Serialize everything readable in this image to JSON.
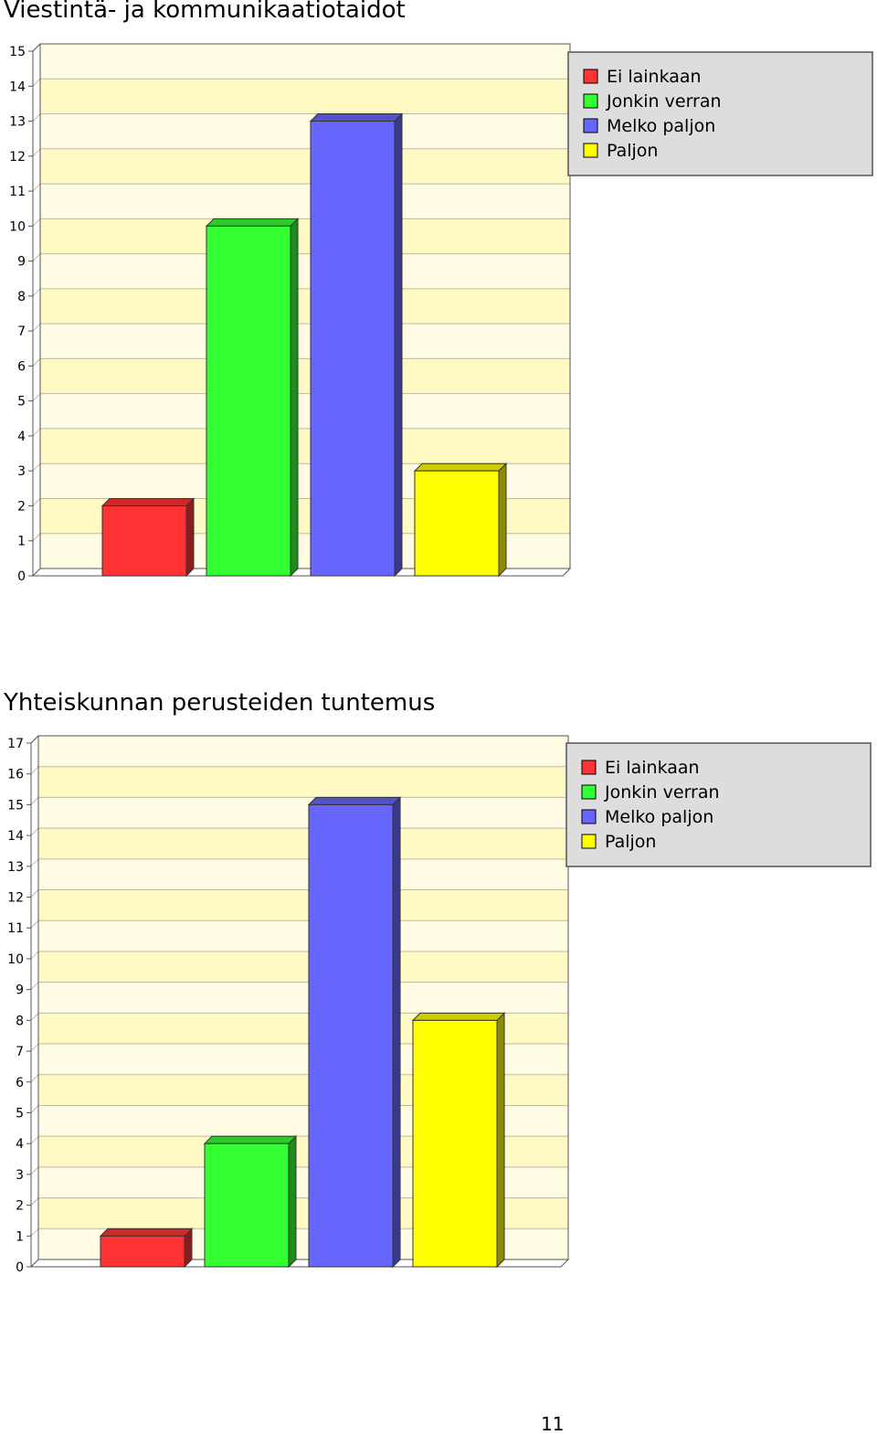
{
  "titles": [
    "Viestintä- ja kommunikaatiotaidot",
    "Yhteiskunnan perusteiden tuntemus"
  ],
  "page_number": "11",
  "colors": {
    "plot_band_light": "#fffce3",
    "plot_band_dark": "#fff9c4",
    "gridline": "#bdb9a4",
    "legend_bg": "#dddddd"
  },
  "chart_data": [
    {
      "type": "bar",
      "title": "Viestintä- ja kommunikaatiotaidot",
      "categories": [
        "Ei lainkaan",
        "Jonkin verran",
        "Melko paljon",
        "Paljon"
      ],
      "values": [
        2,
        10,
        13,
        3
      ],
      "colors": [
        "#ff3333",
        "#33ff33",
        "#6666ff",
        "#ffff00"
      ],
      "ylim": [
        0,
        15
      ],
      "yticks": [
        "0",
        "1",
        "2",
        "3",
        "4",
        "5",
        "6",
        "7",
        "8",
        "9",
        "10",
        "11",
        "12",
        "13",
        "14",
        "15"
      ],
      "grid": true,
      "legend": [
        "Ei lainkaan",
        "Jonkin verran",
        "Melko paljon",
        "Paljon"
      ],
      "legend_position": "top-right"
    },
    {
      "type": "bar",
      "title": "Yhteiskunnan perusteiden tuntemus",
      "categories": [
        "Ei lainkaan",
        "Jonkin verran",
        "Melko paljon",
        "Paljon"
      ],
      "values": [
        1,
        4,
        15,
        8
      ],
      "colors": [
        "#ff3333",
        "#33ff33",
        "#6666ff",
        "#ffff00"
      ],
      "ylim": [
        0,
        17
      ],
      "yticks": [
        "0",
        "1",
        "2",
        "3",
        "4",
        "5",
        "6",
        "7",
        "8",
        "9",
        "10",
        "11",
        "12",
        "13",
        "14",
        "15",
        "16",
        "17"
      ],
      "grid": true,
      "legend": [
        "Ei lainkaan",
        "Jonkin verran",
        "Melko paljon",
        "Paljon"
      ],
      "legend_position": "top-right"
    }
  ]
}
